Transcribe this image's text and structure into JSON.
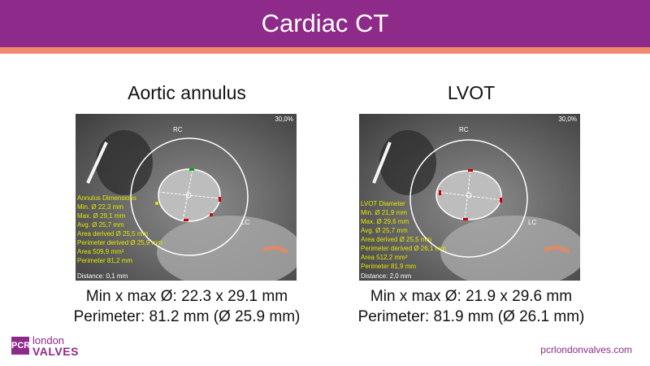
{
  "header": {
    "title": "Cardiac CT"
  },
  "panels": [
    {
      "title": "Aortic annulus",
      "image": {
        "zoom": "30,0%",
        "rc_label": "RC",
        "lc_label": "LC",
        "distance": "Distance: 0,1 mm",
        "overlay": [
          "Annulus Dimensions",
          "Min.  Ø  22,3 mm",
          "Max.  Ø  29,1 mm",
          "Avg.  Ø  25,7 mm",
          "Area derived Ø  25,5 mm",
          "Perimeter derived Ø  25,9 mm",
          "Area  509,9 mm²",
          "Perimeter  81,2 mm"
        ]
      },
      "caption_line1": "Min x max Ø: 22.3 x 29.1 mm",
      "caption_line2": "Perimeter: 81.2 mm (Ø 25.9 mm)"
    },
    {
      "title": "LVOT",
      "image": {
        "zoom": "30,0%",
        "rc_label": "RC",
        "lc_label": "LC",
        "distance": "Distance: 2,0 mm",
        "overlay": [
          "LVOT Diameter",
          "Min.  Ø  21,9 mm",
          "Max.  Ø  29,6 mm",
          "Avg.  Ø  25,7 mm",
          "Area derived Ø  25,5 mm",
          "Perimeter derived Ø  26,1 mm",
          "Area  512,2 mm²",
          "Perimeter  81,9 mm"
        ]
      },
      "caption_line1": "Min x max Ø: 21.9 x 29.6 mm",
      "caption_line2": "Perimeter: 81.9 mm (Ø 26.1 mm)"
    }
  ],
  "footer": {
    "logo_pcr": "PCR",
    "logo_london": "london",
    "logo_valves": "VALVES",
    "website": "pcrlondonvalves.com"
  },
  "colors": {
    "brand_purple": "#8e2a8a",
    "accent_salmon": "#f08a6c",
    "overlay_yellow": "#e6e600"
  }
}
